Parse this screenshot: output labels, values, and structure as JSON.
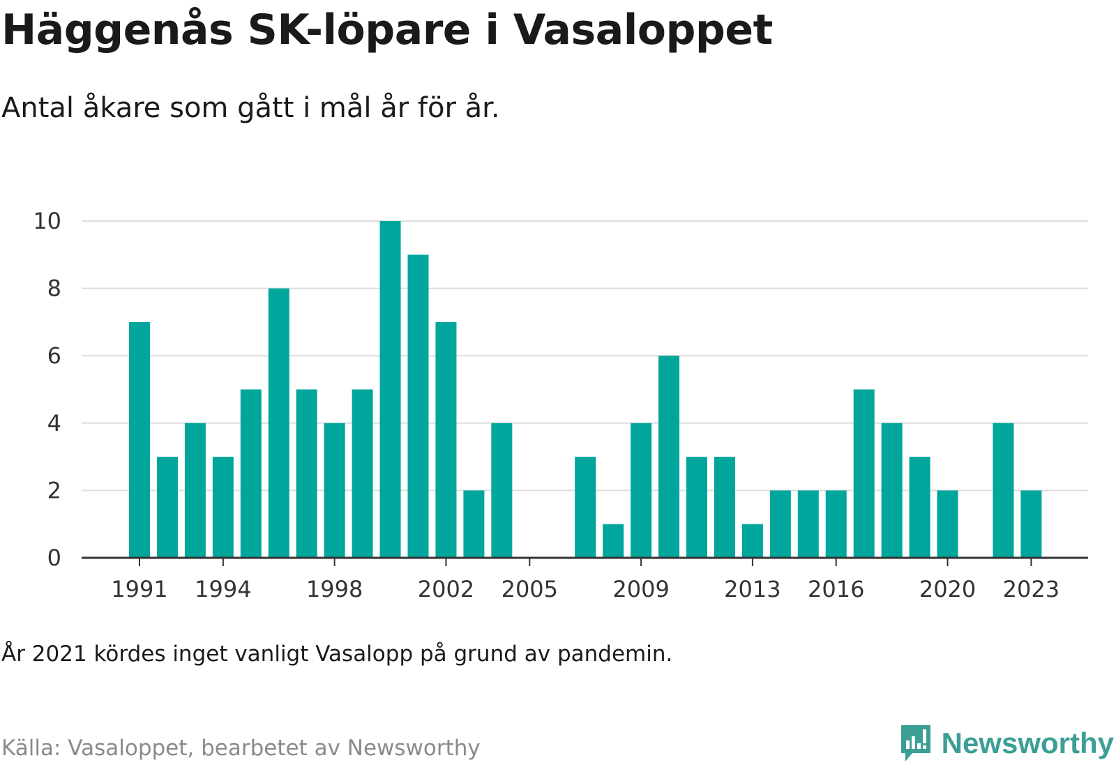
{
  "header": {
    "title": "Häggenås SK-löpare i Vasaloppet",
    "subtitle": "Antal åkare som gått i mål år för år."
  },
  "footer": {
    "note": "År 2021 kördes inget vanligt Vasalopp på grund av pandemin.",
    "source": "Källa: Vasaloppet, bearbetet av Newsworthy",
    "brand": "Newsworthy"
  },
  "colors": {
    "bar": "#00a69c",
    "grid": "#dddddd",
    "axis": "#333333",
    "brand": "#3c9f95"
  },
  "chart_data": {
    "type": "bar",
    "categories": [
      1991,
      1992,
      1993,
      1994,
      1995,
      1996,
      1997,
      1998,
      1999,
      2000,
      2001,
      2002,
      2003,
      2004,
      2005,
      2006,
      2007,
      2008,
      2009,
      2010,
      2011,
      2012,
      2013,
      2014,
      2015,
      2016,
      2017,
      2018,
      2019,
      2020,
      2021,
      2022,
      2023
    ],
    "values": [
      7,
      3,
      4,
      3,
      5,
      8,
      5,
      4,
      5,
      10,
      9,
      7,
      2,
      4,
      0,
      0,
      3,
      1,
      4,
      6,
      3,
      3,
      1,
      2,
      2,
      2,
      5,
      4,
      3,
      2,
      0,
      4,
      2
    ],
    "x_ticks": [
      "1991",
      "1994",
      "1998",
      "2002",
      "2005",
      "2009",
      "2013",
      "2016",
      "2020",
      "2023"
    ],
    "y_ticks": [
      0,
      2,
      4,
      6,
      8,
      10
    ],
    "ylim": [
      0,
      10
    ],
    "grid": true
  }
}
